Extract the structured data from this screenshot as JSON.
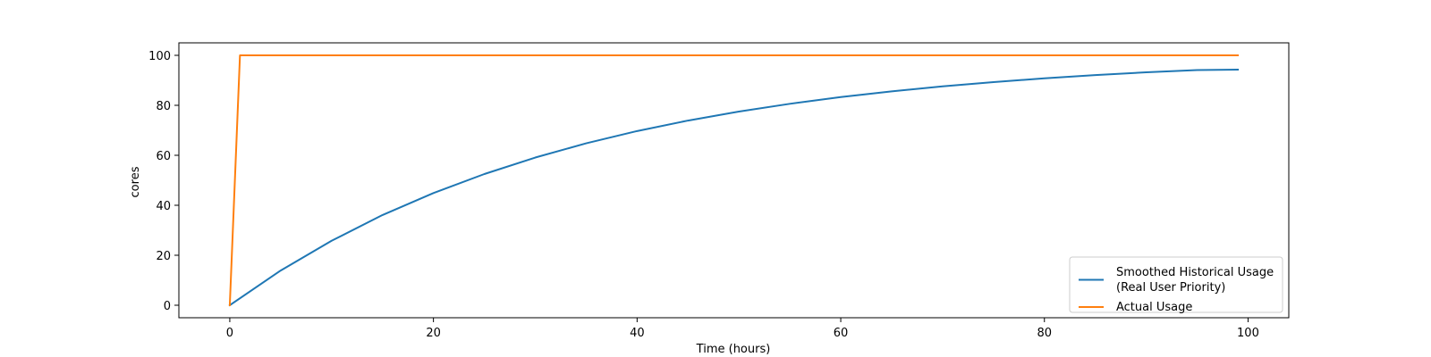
{
  "chart_data": {
    "type": "line",
    "title": "",
    "xlabel": "Time (hours)",
    "ylabel": "cores",
    "xlim": [
      -5,
      104
    ],
    "ylim": [
      -5,
      105
    ],
    "xticks": [
      0,
      20,
      40,
      60,
      80,
      100
    ],
    "yticks": [
      0,
      20,
      40,
      60,
      80,
      100
    ],
    "xtick_labels": [
      "0",
      "20",
      "40",
      "60",
      "80",
      "100"
    ],
    "ytick_labels": [
      "0",
      "20",
      "40",
      "60",
      "80",
      "100"
    ],
    "grid": false,
    "legend_position": "bottom-right",
    "series": [
      {
        "name": "Smoothed Historical Usage\n(Real User Priority)",
        "name_lines": [
          "Smoothed Historical Usage",
          "(Real User Priority)"
        ],
        "color": "#1f77b4",
        "x": [
          0,
          5,
          10,
          15,
          20,
          25,
          30,
          35,
          40,
          45,
          50,
          55,
          60,
          65,
          70,
          75,
          80,
          85,
          90,
          95,
          99
        ],
        "y": [
          0,
          13.9,
          25.8,
          36.1,
          44.9,
          52.5,
          59.1,
          64.8,
          69.7,
          73.9,
          77.5,
          80.6,
          83.3,
          85.6,
          87.6,
          89.3,
          90.8,
          92.1,
          93.2,
          94.1,
          94.3
        ]
      },
      {
        "name": "Actual Usage",
        "name_lines": [
          "Actual Usage"
        ],
        "color": "#ff7f0e",
        "x": [
          0,
          1,
          99
        ],
        "y": [
          0,
          100,
          100
        ]
      }
    ]
  }
}
